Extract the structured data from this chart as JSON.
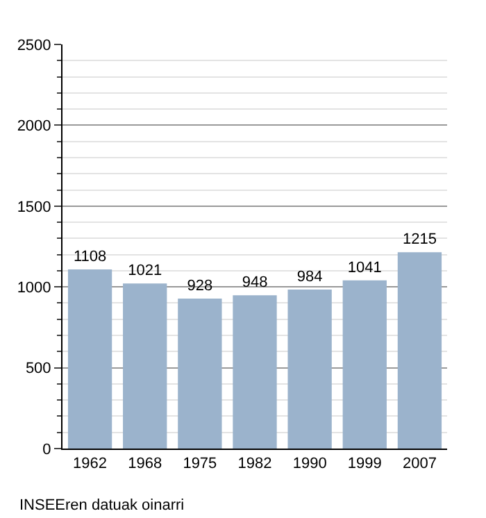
{
  "chart_data": {
    "type": "bar",
    "categories": [
      "1962",
      "1968",
      "1975",
      "1982",
      "1990",
      "1999",
      "2007"
    ],
    "values": [
      1108,
      1021,
      928,
      948,
      984,
      1041,
      1215
    ],
    "color": "#9bb3cc",
    "ylim": [
      0,
      2500
    ],
    "yticks": [
      0,
      500,
      1000,
      1500,
      2000,
      2500
    ],
    "grid": "y",
    "data_labels": true,
    "annotations": [
      "INSEEren datuak oinarri"
    ]
  }
}
